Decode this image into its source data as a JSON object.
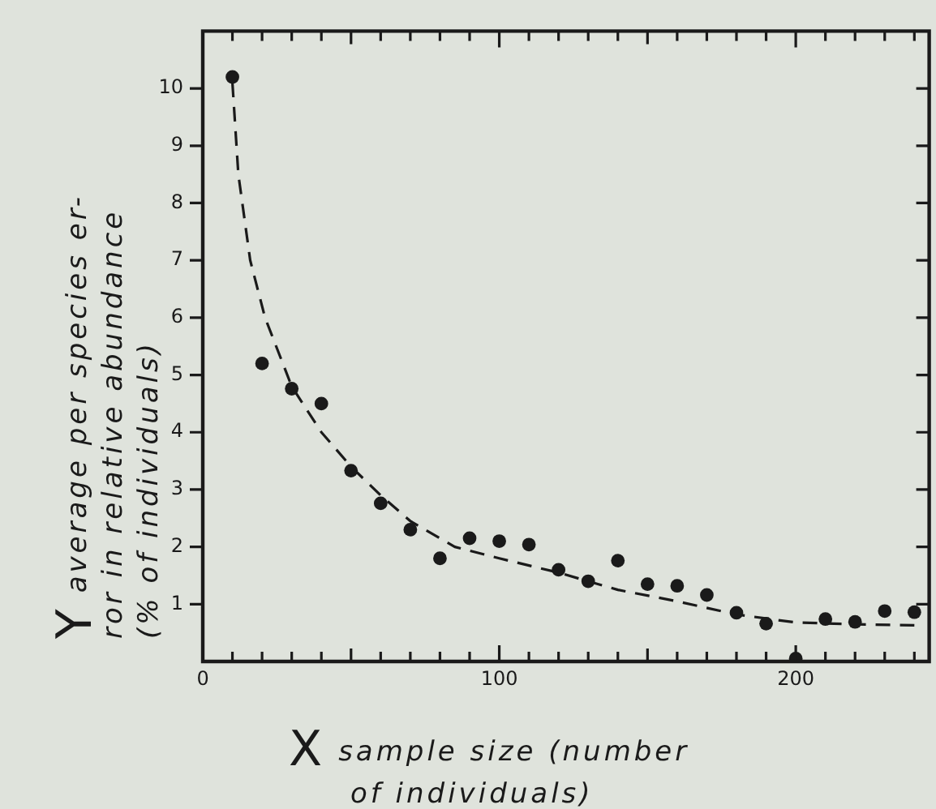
{
  "chart_data": {
    "type": "scatter",
    "xlabel": "sample size (number\nof individuals)",
    "ylabel": "average per species er-\nror in relative abundance\n(% of individuals)",
    "annotations": [
      "Y",
      "X"
    ],
    "xlim": [
      0,
      245
    ],
    "ylim": [
      0,
      11
    ],
    "xticks": [
      0,
      {
        "value": 10,
        "label": null
      },
      {
        "value": 20,
        "label": null
      },
      {
        "value": 30,
        "label": null
      },
      {
        "value": 40,
        "label": null
      },
      {
        "value": 50,
        "label": null
      },
      {
        "value": 60,
        "label": null
      },
      {
        "value": 70,
        "label": null
      },
      {
        "value": 80,
        "label": null
      },
      {
        "value": 90,
        "label": null
      },
      100,
      {
        "value": 110,
        "label": null
      },
      {
        "value": 120,
        "label": null
      },
      {
        "value": 130,
        "label": null
      },
      {
        "value": 140,
        "label": null
      },
      {
        "value": 150,
        "label": null
      },
      {
        "value": 160,
        "label": null
      },
      {
        "value": 170,
        "label": null
      },
      {
        "value": 180,
        "label": null
      },
      {
        "value": 190,
        "label": null
      },
      200,
      {
        "value": 210,
        "label": null
      },
      {
        "value": 220,
        "label": null
      },
      {
        "value": 230,
        "label": null
      },
      {
        "value": 240,
        "label": null
      }
    ],
    "yticks": [
      1,
      2,
      3,
      4,
      5,
      6,
      7,
      8,
      9,
      10
    ],
    "grid": false,
    "legend": false,
    "marker": "circle",
    "series": [
      {
        "color": "#1a1a1a",
        "x": [
          10,
          20,
          30,
          40,
          50,
          60,
          70,
          80,
          90,
          100,
          110,
          120,
          130,
          140,
          150,
          160,
          170,
          180,
          190,
          200,
          210,
          220,
          230,
          240
        ],
        "values": [
          10.2,
          5.2,
          4.76,
          4.5,
          3.33,
          2.76,
          2.3,
          1.8,
          2.15,
          2.1,
          2.04,
          1.6,
          1.4,
          1.76,
          1.35,
          1.32,
          1.16,
          0.85,
          0.66,
          0.05,
          0.74,
          0.69,
          0.88,
          0.86
        ]
      },
      {
        "type": "line",
        "color": "#1a1a1a",
        "line_style": "dashed",
        "marker": "none",
        "x": [
          10,
          12,
          16,
          21,
          30,
          40,
          50,
          60,
          70,
          85,
          100,
          120,
          140,
          160,
          180,
          200,
          220,
          240
        ],
        "values": [
          10.1,
          8.5,
          7,
          6,
          4.8,
          4,
          3.4,
          2.9,
          2.45,
          2,
          1.8,
          1.55,
          1.25,
          1.05,
          0.82,
          0.68,
          0.65,
          0.63
        ]
      }
    ]
  }
}
